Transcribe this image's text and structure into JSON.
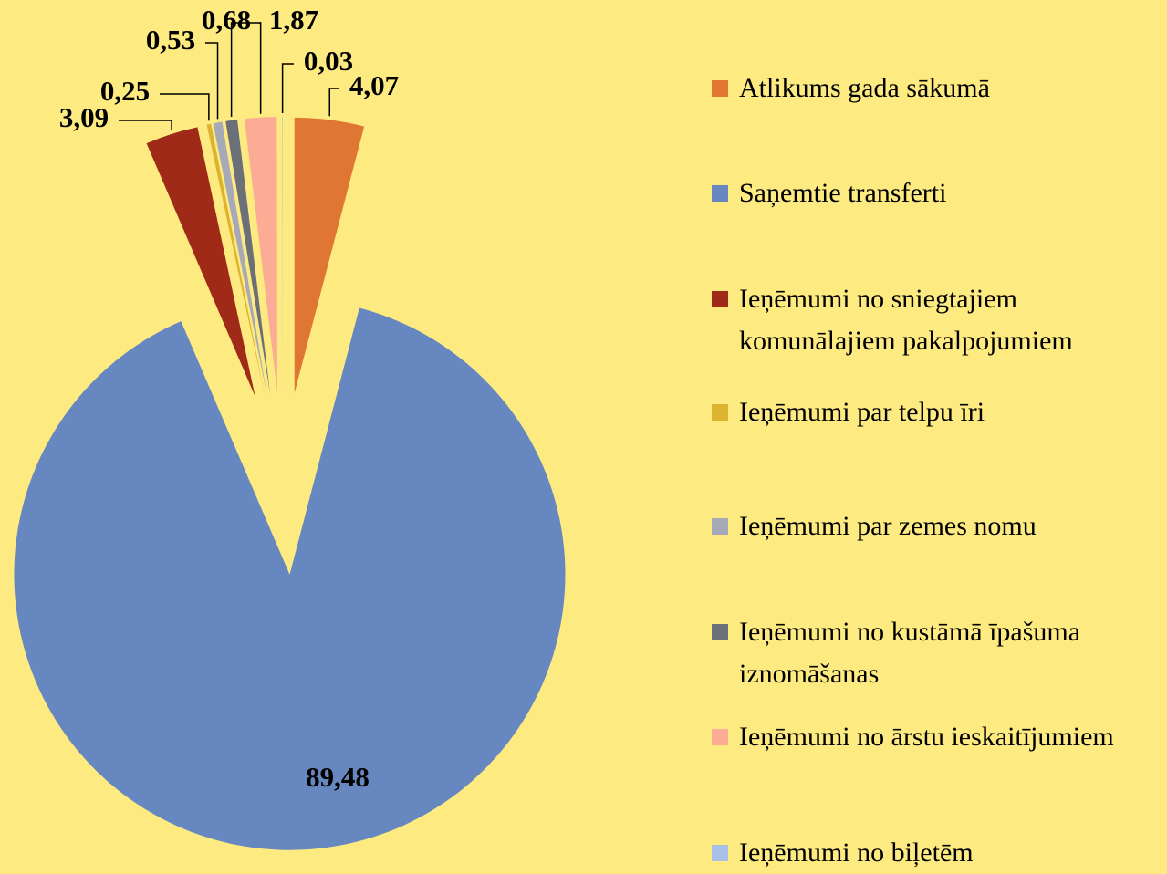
{
  "chart_data": {
    "type": "pie",
    "categories": [
      "Atlikums gada sākumā",
      "Saņemtie transferti",
      "Ieņēmumi no sniegtajiem komunālajiem pakalpojumiem",
      "Ieņēmumi par telpu īri",
      "Ieņēmumi par zemes nomu",
      "Ieņēmumi no kustāmā īpašuma iznomāšanas",
      "Ieņēmumi no ārstu ieskaitījumiem",
      "Ieņēmumi no biļetēm"
    ],
    "values": [
      4.07,
      89.48,
      3.09,
      0.25,
      0.53,
      0.68,
      1.87,
      0.03
    ],
    "value_labels": [
      "4,07",
      "89,48",
      "3,09",
      "0,25",
      "0,53",
      "0,68",
      "1,87",
      "0,03"
    ],
    "colors": [
      "#e07633",
      "#6787c0",
      "#9e2a17",
      "#dcb22e",
      "#a5a9b8",
      "#6b6f78",
      "#fcac94",
      "#a9bfe6"
    ],
    "legend": "right"
  }
}
